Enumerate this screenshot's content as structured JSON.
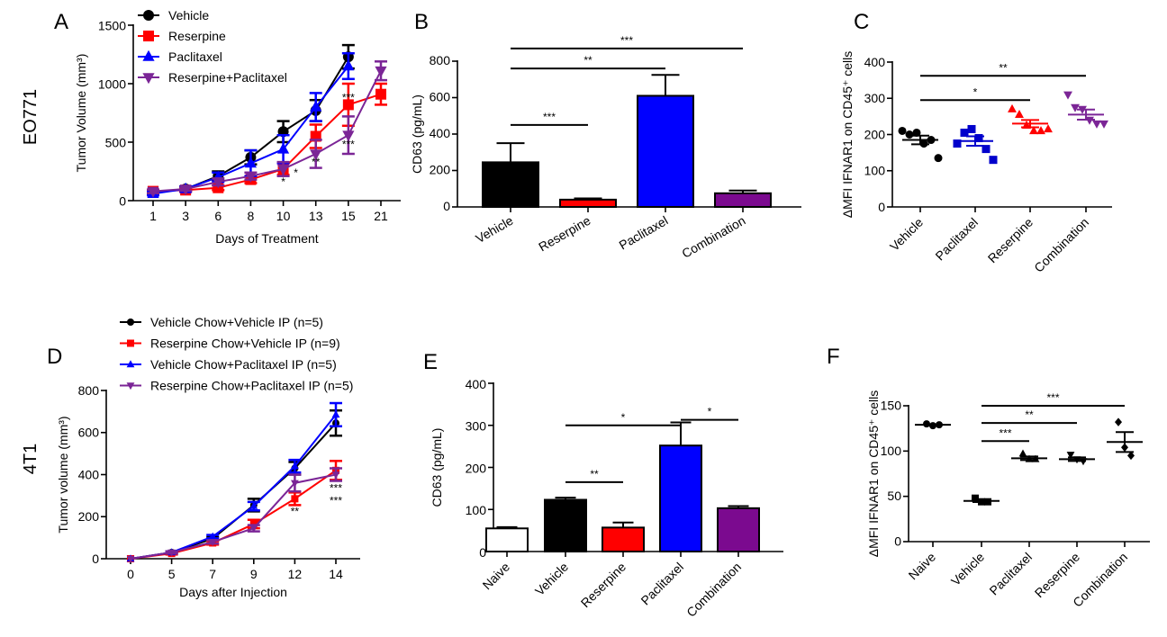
{
  "row_labels": [
    "EO771",
    "4T1"
  ],
  "chart_data": [
    {
      "panel": "A",
      "type": "line",
      "xlabel": "Days of Treatment",
      "ylabel": "Tumor Volume (mm³)",
      "categories": [
        "1",
        "3",
        "6",
        "8",
        "10",
        "13",
        "15",
        "21"
      ],
      "ylim": [
        0,
        1500
      ],
      "yticks": [
        0,
        500,
        1000,
        1500
      ],
      "legend": "top-left",
      "series": [
        {
          "name": "Vehicle",
          "color": "#000000",
          "marker": "circle",
          "values": [
            70,
            100,
            210,
            370,
            590,
            770,
            1230,
            null
          ],
          "err": [
            15,
            20,
            40,
            60,
            90,
            90,
            100,
            null
          ]
        },
        {
          "name": "Reserpine",
          "color": "#ff0000",
          "marker": "square",
          "values": [
            80,
            90,
            110,
            180,
            270,
            550,
            820,
            910
          ],
          "err": [
            15,
            15,
            20,
            30,
            50,
            100,
            180,
            90
          ]
        },
        {
          "name": "Paclitaxel",
          "color": "#0000ff",
          "marker": "triangle",
          "values": [
            60,
            100,
            200,
            320,
            440,
            800,
            1150,
            null
          ],
          "err": [
            15,
            20,
            40,
            110,
            120,
            120,
            110,
            null
          ]
        },
        {
          "name": "Reserpine+Paclitaxel",
          "color": "#7b2596",
          "marker": "triangle-down",
          "values": [
            80,
            100,
            160,
            210,
            270,
            400,
            560,
            1110
          ],
          "err": [
            15,
            15,
            30,
            30,
            60,
            120,
            160,
            80
          ]
        }
      ],
      "annotations": [
        {
          "text": "*",
          "x": "10",
          "y": 160
        },
        {
          "text": "*",
          "x": "10",
          "y": 240,
          "dx": 1
        },
        {
          "text": "**",
          "x": "13",
          "y": 330
        },
        {
          "text": "***",
          "x": "15",
          "y": 880
        },
        {
          "text": "***",
          "x": "15",
          "y": 480
        }
      ]
    },
    {
      "panel": "B",
      "type": "bar",
      "ylabel": "CD63 (pg/mL)",
      "categories": [
        "Vehicle",
        "Reserpine",
        "Paclitaxel",
        "Combination"
      ],
      "values": [
        245,
        40,
        610,
        75
      ],
      "err": [
        105,
        7,
        115,
        15
      ],
      "colors": [
        "#000000",
        "#ff0000",
        "#0000ff",
        "#7b0a8f"
      ],
      "ylim": [
        0,
        800
      ],
      "yticks": [
        0,
        200,
        400,
        600,
        800
      ],
      "significance": [
        {
          "from": 0,
          "to": 1,
          "y": 450,
          "text": "***"
        },
        {
          "from": 0,
          "to": 2,
          "y": 760,
          "text": "**"
        },
        {
          "from": 0,
          "to": 3,
          "y": 870,
          "text": "***"
        }
      ]
    },
    {
      "panel": "C",
      "type": "scatter",
      "ylabel": "ΔMFI IFNAR1 on CD45⁺ cells",
      "categories": [
        "Vehicle",
        "Paclitaxel",
        "Reserpine",
        "Combination"
      ],
      "points": [
        [
          210,
          200,
          205,
          175,
          185,
          135
        ],
        [
          175,
          205,
          215,
          190,
          160,
          130
        ],
        [
          270,
          255,
          225,
          210,
          210,
          215
        ],
        [
          310,
          275,
          270,
          240,
          230,
          230
        ]
      ],
      "means": [
        185,
        182,
        230,
        255
      ],
      "sem": [
        12,
        13,
        10,
        14
      ],
      "colors": [
        "#000000",
        "#0000cc",
        "#ff0000",
        "#7b2596"
      ],
      "markers": [
        "circle",
        "square",
        "triangle",
        "triangle-down"
      ],
      "ylim": [
        0,
        400
      ],
      "yticks": [
        0,
        100,
        200,
        300,
        400
      ],
      "significance": [
        {
          "from": 0,
          "to": 2,
          "y": 295,
          "text": "*"
        },
        {
          "from": 0,
          "to": 3,
          "y": 362,
          "text": "**"
        }
      ]
    },
    {
      "panel": "D",
      "type": "line",
      "xlabel": "Days after Injection",
      "ylabel": "Tumor volume (mm³)",
      "categories": [
        "0",
        "5",
        "7",
        "9",
        "12",
        "14"
      ],
      "ylim": [
        0,
        800
      ],
      "yticks": [
        0,
        200,
        400,
        600,
        800
      ],
      "legend": "top",
      "series": [
        {
          "name": "Vehicle Chow+Vehicle IP (n=5)",
          "color": "#000000",
          "marker": "circle",
          "values": [
            0,
            30,
            95,
            255,
            430,
            645
          ],
          "err": [
            0,
            5,
            8,
            30,
            30,
            60
          ]
        },
        {
          "name": "Reserpine Chow+Vehicle IP (n=9)",
          "color": "#ff0000",
          "marker": "square",
          "values": [
            0,
            25,
            75,
            165,
            285,
            420
          ],
          "err": [
            0,
            5,
            8,
            20,
            30,
            45
          ]
        },
        {
          "name": "Vehicle Chow+Paclitaxel IP (n=5)",
          "color": "#0000ff",
          "marker": "triangle",
          "values": [
            0,
            30,
            105,
            250,
            440,
            685
          ],
          "err": [
            0,
            5,
            8,
            20,
            30,
            55
          ]
        },
        {
          "name": "Reserpine Chow+Paclitaxel IP (n=5)",
          "color": "#7b2596",
          "marker": "triangle-down",
          "values": [
            0,
            30,
            80,
            145,
            360,
            400
          ],
          "err": [
            0,
            5,
            8,
            15,
            40,
            30
          ]
        }
      ],
      "annotations": [
        {
          "text": "**",
          "x": "12",
          "y": 225,
          "color": "#ff0000"
        },
        {
          "text": "***",
          "x": "14",
          "y": 335,
          "color": "#ff0000"
        },
        {
          "text": "***",
          "x": "14",
          "y": 300,
          "color": "#7b2596"
        }
      ]
    },
    {
      "panel": "E",
      "type": "bar",
      "ylabel": "CD63 (pg/mL)",
      "categories": [
        "Naive",
        "Vehicle",
        "Reserpine",
        "Paclitaxel",
        "Combination"
      ],
      "values": [
        55,
        123,
        57,
        252,
        103
      ],
      "err": [
        3,
        5,
        12,
        55,
        5
      ],
      "colors": [
        "#ffffff",
        "#000000",
        "#ff0000",
        "#0000ff",
        "#7b0a8f"
      ],
      "ylim": [
        0,
        400
      ],
      "yticks": [
        0,
        100,
        200,
        300,
        400
      ],
      "significance": [
        {
          "from": 1,
          "to": 2,
          "y": 165,
          "text": "**"
        },
        {
          "from": 1,
          "to": 3,
          "y": 300,
          "text": "*"
        },
        {
          "from": 3,
          "to": 4,
          "y": 313,
          "text": "*"
        }
      ]
    },
    {
      "panel": "F",
      "type": "scatter",
      "ylabel": "ΔMFI IFNAR1 on CD45⁺ cells",
      "categories": [
        "Naive",
        "Vehicle",
        "Paclitaxel",
        "Reserpine",
        "Combination"
      ],
      "points": [
        [
          130,
          128,
          129
        ],
        [
          48,
          44,
          44
        ],
        [
          97,
          91,
          91
        ],
        [
          96,
          91,
          89
        ],
        [
          132,
          104,
          95
        ]
      ],
      "means": [
        129,
        45,
        92,
        91,
        110
      ],
      "sem": [
        0.6,
        1.3,
        2,
        2,
        11
      ],
      "colors": [
        "#000000",
        "#000000",
        "#000000",
        "#000000",
        "#000000"
      ],
      "markers": [
        "circle",
        "square",
        "triangle",
        "triangle-down",
        "diamond"
      ],
      "ylim": [
        0,
        150
      ],
      "yticks": [
        0,
        50,
        100,
        150
      ],
      "significance": [
        {
          "from": 1,
          "to": 2,
          "y": 111,
          "text": "***"
        },
        {
          "from": 1,
          "to": 3,
          "y": 131,
          "text": "**"
        },
        {
          "from": 1,
          "to": 4,
          "y": 150,
          "text": "***"
        }
      ]
    }
  ]
}
